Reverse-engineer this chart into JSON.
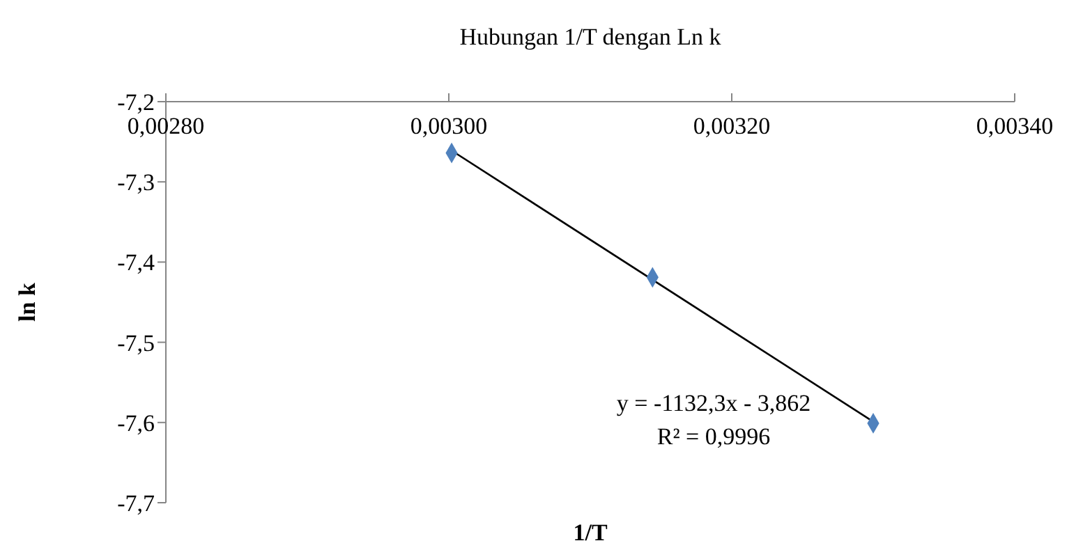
{
  "chart_data": {
    "type": "scatter",
    "title": "Hubungan 1/T dengan Ln k",
    "xlabel": "1/T",
    "ylabel": "ln k",
    "x": [
      0.003002,
      0.003144,
      0.0033
    ],
    "series": [
      {
        "type": "scatter",
        "color": "#4f81bd",
        "marker": "diamond",
        "values": [
          -7.264,
          -7.419,
          -7.601
        ]
      },
      {
        "type": "line",
        "color": "#000000",
        "marker": "none",
        "x": [
          0.003002,
          0.0033
        ],
        "values": [
          -7.261,
          -7.599
        ]
      }
    ],
    "xlim": [
      0.0028,
      0.0034
    ],
    "xticks": [
      {
        "value": 0.0028,
        "label": "0,00280"
      },
      {
        "value": 0.003,
        "label": "0,00300"
      },
      {
        "value": 0.0032,
        "label": "0,00320"
      },
      {
        "value": 0.0034,
        "label": "0,00340"
      }
    ],
    "ylim": [
      -7.7,
      -7.2
    ],
    "yticks": [
      {
        "value": -7.2,
        "label": "-7,2"
      },
      {
        "value": -7.3,
        "label": "-7,3"
      },
      {
        "value": -7.4,
        "label": "-7,4"
      },
      {
        "value": -7.5,
        "label": "-7,5"
      },
      {
        "value": -7.6,
        "label": "-7,6"
      },
      {
        "value": -7.7,
        "label": "-7,7"
      }
    ],
    "annotations": [
      "y = -1132,3x - 3,862",
      "R² = 0,9996"
    ]
  }
}
